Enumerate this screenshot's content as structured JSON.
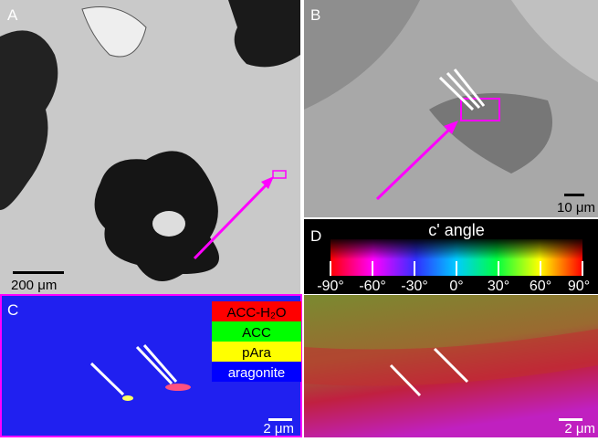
{
  "panels": [
    {
      "label": "A",
      "scale_bar": "200 μm"
    },
    {
      "label": "B",
      "scale_bar": "10 μm"
    },
    {
      "label": "C",
      "scale_bar": "2 μm"
    },
    {
      "label": "D"
    },
    {
      "scale_bar": "2 μm"
    }
  ],
  "legend": [
    "ACC-H₂O",
    "ACC",
    "pAra",
    "aragonite"
  ],
  "colorbar": {
    "title": "c' angle",
    "ticks": [
      "-90°",
      "-60°",
      "-30°",
      "0°",
      "30°",
      "60°",
      "90°"
    ]
  }
}
